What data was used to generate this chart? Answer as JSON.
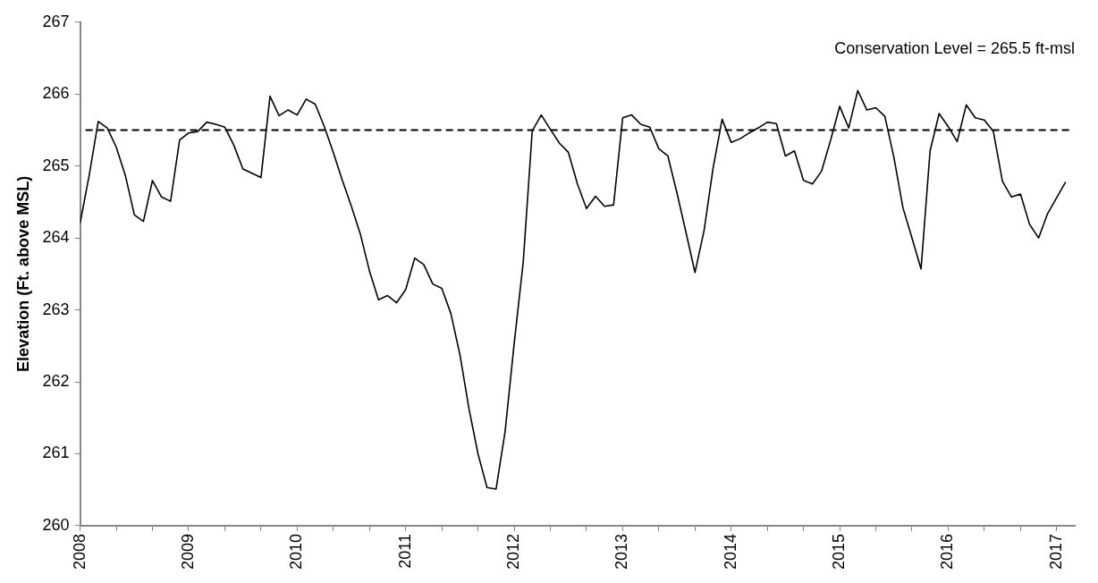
{
  "chart_data": {
    "type": "line",
    "ylabel": "Elevation (Ft. above MSL)",
    "x": [
      "2008-01",
      "2008-02",
      "2008-03",
      "2008-04",
      "2008-05",
      "2008-06",
      "2008-07",
      "2008-08",
      "2008-09",
      "2008-10",
      "2008-11",
      "2008-12",
      "2009-01",
      "2009-02",
      "2009-03",
      "2009-04",
      "2009-05",
      "2009-06",
      "2009-07",
      "2009-08",
      "2009-09",
      "2009-10",
      "2009-11",
      "2009-12",
      "2010-01",
      "2010-02",
      "2010-03",
      "2010-04",
      "2010-05",
      "2010-06",
      "2010-07",
      "2010-08",
      "2010-09",
      "2010-10",
      "2010-11",
      "2010-12",
      "2011-01",
      "2011-02",
      "2011-03",
      "2011-04",
      "2011-05",
      "2011-06",
      "2011-07",
      "2011-08",
      "2011-09",
      "2011-10",
      "2011-11",
      "2011-12",
      "2012-01",
      "2012-02",
      "2012-03",
      "2012-04",
      "2012-05",
      "2012-06",
      "2012-07",
      "2012-08",
      "2012-09",
      "2012-10",
      "2012-11",
      "2012-12",
      "2013-01",
      "2013-02",
      "2013-03",
      "2013-04",
      "2013-05",
      "2013-06",
      "2013-07",
      "2013-08",
      "2013-09",
      "2013-10",
      "2013-11",
      "2013-12",
      "2014-01",
      "2014-02",
      "2014-03",
      "2014-04",
      "2014-05",
      "2014-06",
      "2014-07",
      "2014-08",
      "2014-09",
      "2014-10",
      "2014-11",
      "2014-12",
      "2015-01",
      "2015-02",
      "2015-03",
      "2015-04",
      "2015-05",
      "2015-06",
      "2015-07",
      "2015-08",
      "2015-09",
      "2015-10",
      "2015-11",
      "2015-12",
      "2016-01",
      "2016-02",
      "2016-03",
      "2016-04",
      "2016-05",
      "2016-06",
      "2016-07",
      "2016-08",
      "2016-09",
      "2016-10",
      "2016-11",
      "2016-12",
      "2017-01",
      "2017-02"
    ],
    "series": [
      {
        "color": "#000000",
        "values": [
          264.21,
          264.87,
          265.62,
          265.53,
          265.26,
          264.87,
          264.32,
          264.23,
          264.8,
          264.57,
          264.51,
          265.36,
          265.46,
          265.48,
          265.61,
          265.58,
          265.54,
          265.29,
          264.96,
          264.9,
          264.84,
          265.97,
          265.7,
          265.78,
          265.71,
          265.93,
          265.86,
          265.55,
          265.19,
          264.8,
          264.44,
          264.05,
          263.54,
          263.14,
          263.2,
          263.1,
          263.28,
          263.72,
          263.63,
          263.36,
          263.3,
          262.95,
          262.38,
          261.63,
          261.0,
          260.53,
          260.51,
          261.31,
          262.53,
          263.66,
          265.49,
          265.71,
          265.51,
          265.32,
          265.19,
          264.75,
          264.41,
          264.58,
          264.44,
          264.46,
          265.67,
          265.71,
          265.58,
          265.54,
          265.24,
          265.14,
          264.63,
          264.08,
          263.52,
          264.1,
          264.97,
          265.65,
          265.33,
          265.38,
          265.46,
          265.53,
          265.61,
          265.59,
          265.14,
          265.21,
          264.8,
          264.75,
          264.93,
          265.36,
          265.83,
          265.53,
          266.05,
          265.78,
          265.81,
          265.69,
          265.12,
          264.42,
          264.0,
          263.57,
          265.21,
          265.73,
          265.55,
          265.34,
          265.85,
          265.67,
          265.64,
          265.48,
          264.79,
          264.57,
          264.61,
          264.19,
          264.0,
          264.34,
          264.56,
          264.78
        ]
      }
    ],
    "xlim": [
      "2008-01",
      "2017-03"
    ],
    "xticks": [
      "2008",
      {
        "value": "2008-05",
        "label": null
      },
      {
        "value": "2008-09",
        "label": null
      },
      "2009",
      {
        "value": "2009-05",
        "label": null
      },
      {
        "value": "2009-09",
        "label": null
      },
      "2010",
      {
        "value": "2010-05",
        "label": null
      },
      {
        "value": "2010-09",
        "label": null
      },
      "2011",
      {
        "value": "2011-05",
        "label": null
      },
      {
        "value": "2011-09",
        "label": null
      },
      "2012",
      {
        "value": "2012-05",
        "label": null
      },
      {
        "value": "2012-09",
        "label": null
      },
      "2013",
      {
        "value": "2013-05",
        "label": null
      },
      {
        "value": "2013-09",
        "label": null
      },
      "2014",
      {
        "value": "2014-05",
        "label": null
      },
      {
        "value": "2014-09",
        "label": null
      },
      "2015",
      {
        "value": "2015-05",
        "label": null
      },
      {
        "value": "2015-09",
        "label": null
      },
      "2016",
      {
        "value": "2016-05",
        "label": null
      },
      {
        "value": "2016-09",
        "label": null
      },
      "2017"
    ],
    "ylim": [
      260,
      267
    ],
    "yticks": [
      260,
      261,
      262,
      263,
      264,
      265,
      266,
      267
    ],
    "ref_lines": [
      {
        "axis": "y",
        "value": 265.5,
        "label": "Conservation Level = 265.5 ft-msl",
        "color": "#000000",
        "line_style": "dashed"
      }
    ],
    "grid": false,
    "legend": false,
    "marker": "none",
    "line_style": "solid"
  }
}
